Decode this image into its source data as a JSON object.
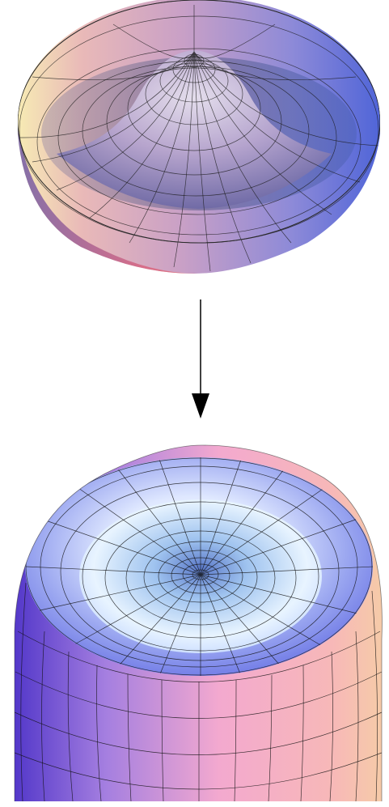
{
  "figure": {
    "panels": [
      {
        "id": "top-surface",
        "shape": "mexican-hat potential in bowl (central peak, annular trough)"
      },
      {
        "id": "bottom-surface",
        "shape": "inverted dome with central dimple"
      }
    ],
    "arrow": {
      "direction": "down"
    },
    "colors": {
      "top_left": "#f5e6b0",
      "top_mid": "#c9a3c8",
      "top_right": "#5b6fd6",
      "top_rim": "#e0788a",
      "bottom_left": "#5a3fd0",
      "bottom_mid": "#f3a6c6",
      "bottom_right": "#f8c9a8",
      "inner_light": "#eef6ff",
      "inner_blue": "#7f95ea",
      "mesh": "#1a1a1a",
      "arrow": "#000000"
    }
  }
}
